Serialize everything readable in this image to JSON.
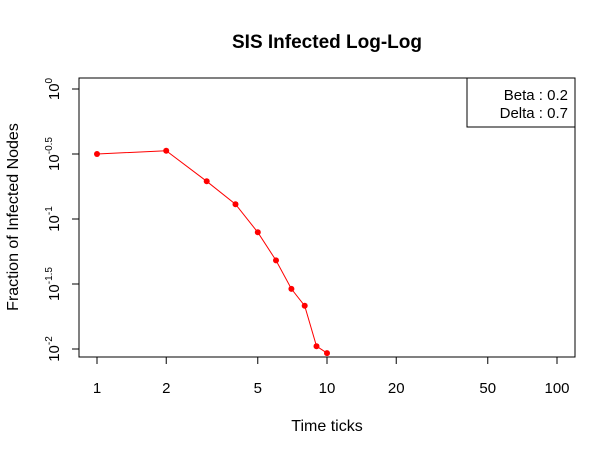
{
  "chart_data": {
    "type": "scatter",
    "title": "SIS Infected Log-Log",
    "xlabel": "Time ticks",
    "ylabel": "Fraction of Infected Nodes",
    "x_scale": "log",
    "y_scale": "log",
    "xlim": [
      1,
      125
    ],
    "ylim": [
      0.0082,
      1.0
    ],
    "x_ticks": [
      {
        "value": 1,
        "label": "1"
      },
      {
        "value": 2,
        "label": "2"
      },
      {
        "value": 5,
        "label": "5"
      },
      {
        "value": 10,
        "label": "10"
      },
      {
        "value": 20,
        "label": "20"
      },
      {
        "value": 50,
        "label": "50"
      },
      {
        "value": 100,
        "label": "100"
      }
    ],
    "y_ticks": [
      {
        "value": 0.01,
        "base": "10",
        "exp": "-2"
      },
      {
        "value": 0.031623,
        "base": "10",
        "exp": "-1.5"
      },
      {
        "value": 0.1,
        "base": "10",
        "exp": "-1"
      },
      {
        "value": 0.316228,
        "base": "10",
        "exp": "-0.5"
      },
      {
        "value": 1.0,
        "base": "10",
        "exp": "0"
      }
    ],
    "series": [
      {
        "color": "#ff0000",
        "marker": "point+line",
        "x": [
          1,
          2,
          3,
          4,
          5,
          6,
          7,
          8,
          9,
          10
        ],
        "y": [
          0.3162,
          0.335,
          0.195,
          0.13,
          0.079,
          0.048,
          0.029,
          0.0215,
          0.0105,
          0.0093
        ]
      }
    ],
    "legend": {
      "position": "top-right",
      "entries": [
        "Beta : 0.2",
        "Delta : 0.7"
      ]
    },
    "grid": false
  }
}
